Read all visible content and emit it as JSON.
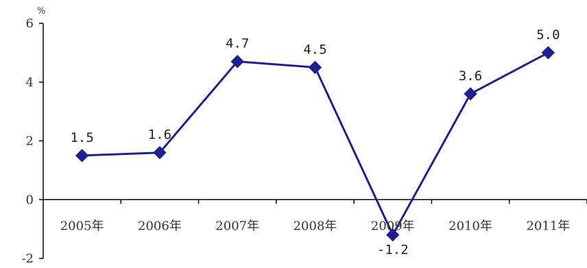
{
  "chart_data": {
    "type": "line",
    "title": "",
    "xlabel": "",
    "ylabel": "%",
    "categories": [
      "2005年",
      "2006年",
      "2007年",
      "2008年",
      "2009年",
      "2010年",
      "2011年"
    ],
    "series": [
      {
        "values": [
          1.5,
          1.6,
          4.7,
          4.5,
          -1.2,
          3.6,
          5.0
        ],
        "labels": [
          "1.5",
          "1.6",
          "4.7",
          "4.5",
          "-1.2",
          "3.6",
          "5.0"
        ],
        "color": "#1f1f8f",
        "marker": "diamond"
      }
    ],
    "yticks": [
      -2,
      0,
      2,
      4,
      6
    ],
    "ylim": [
      -2,
      6
    ],
    "grid": false,
    "legend": "none"
  }
}
